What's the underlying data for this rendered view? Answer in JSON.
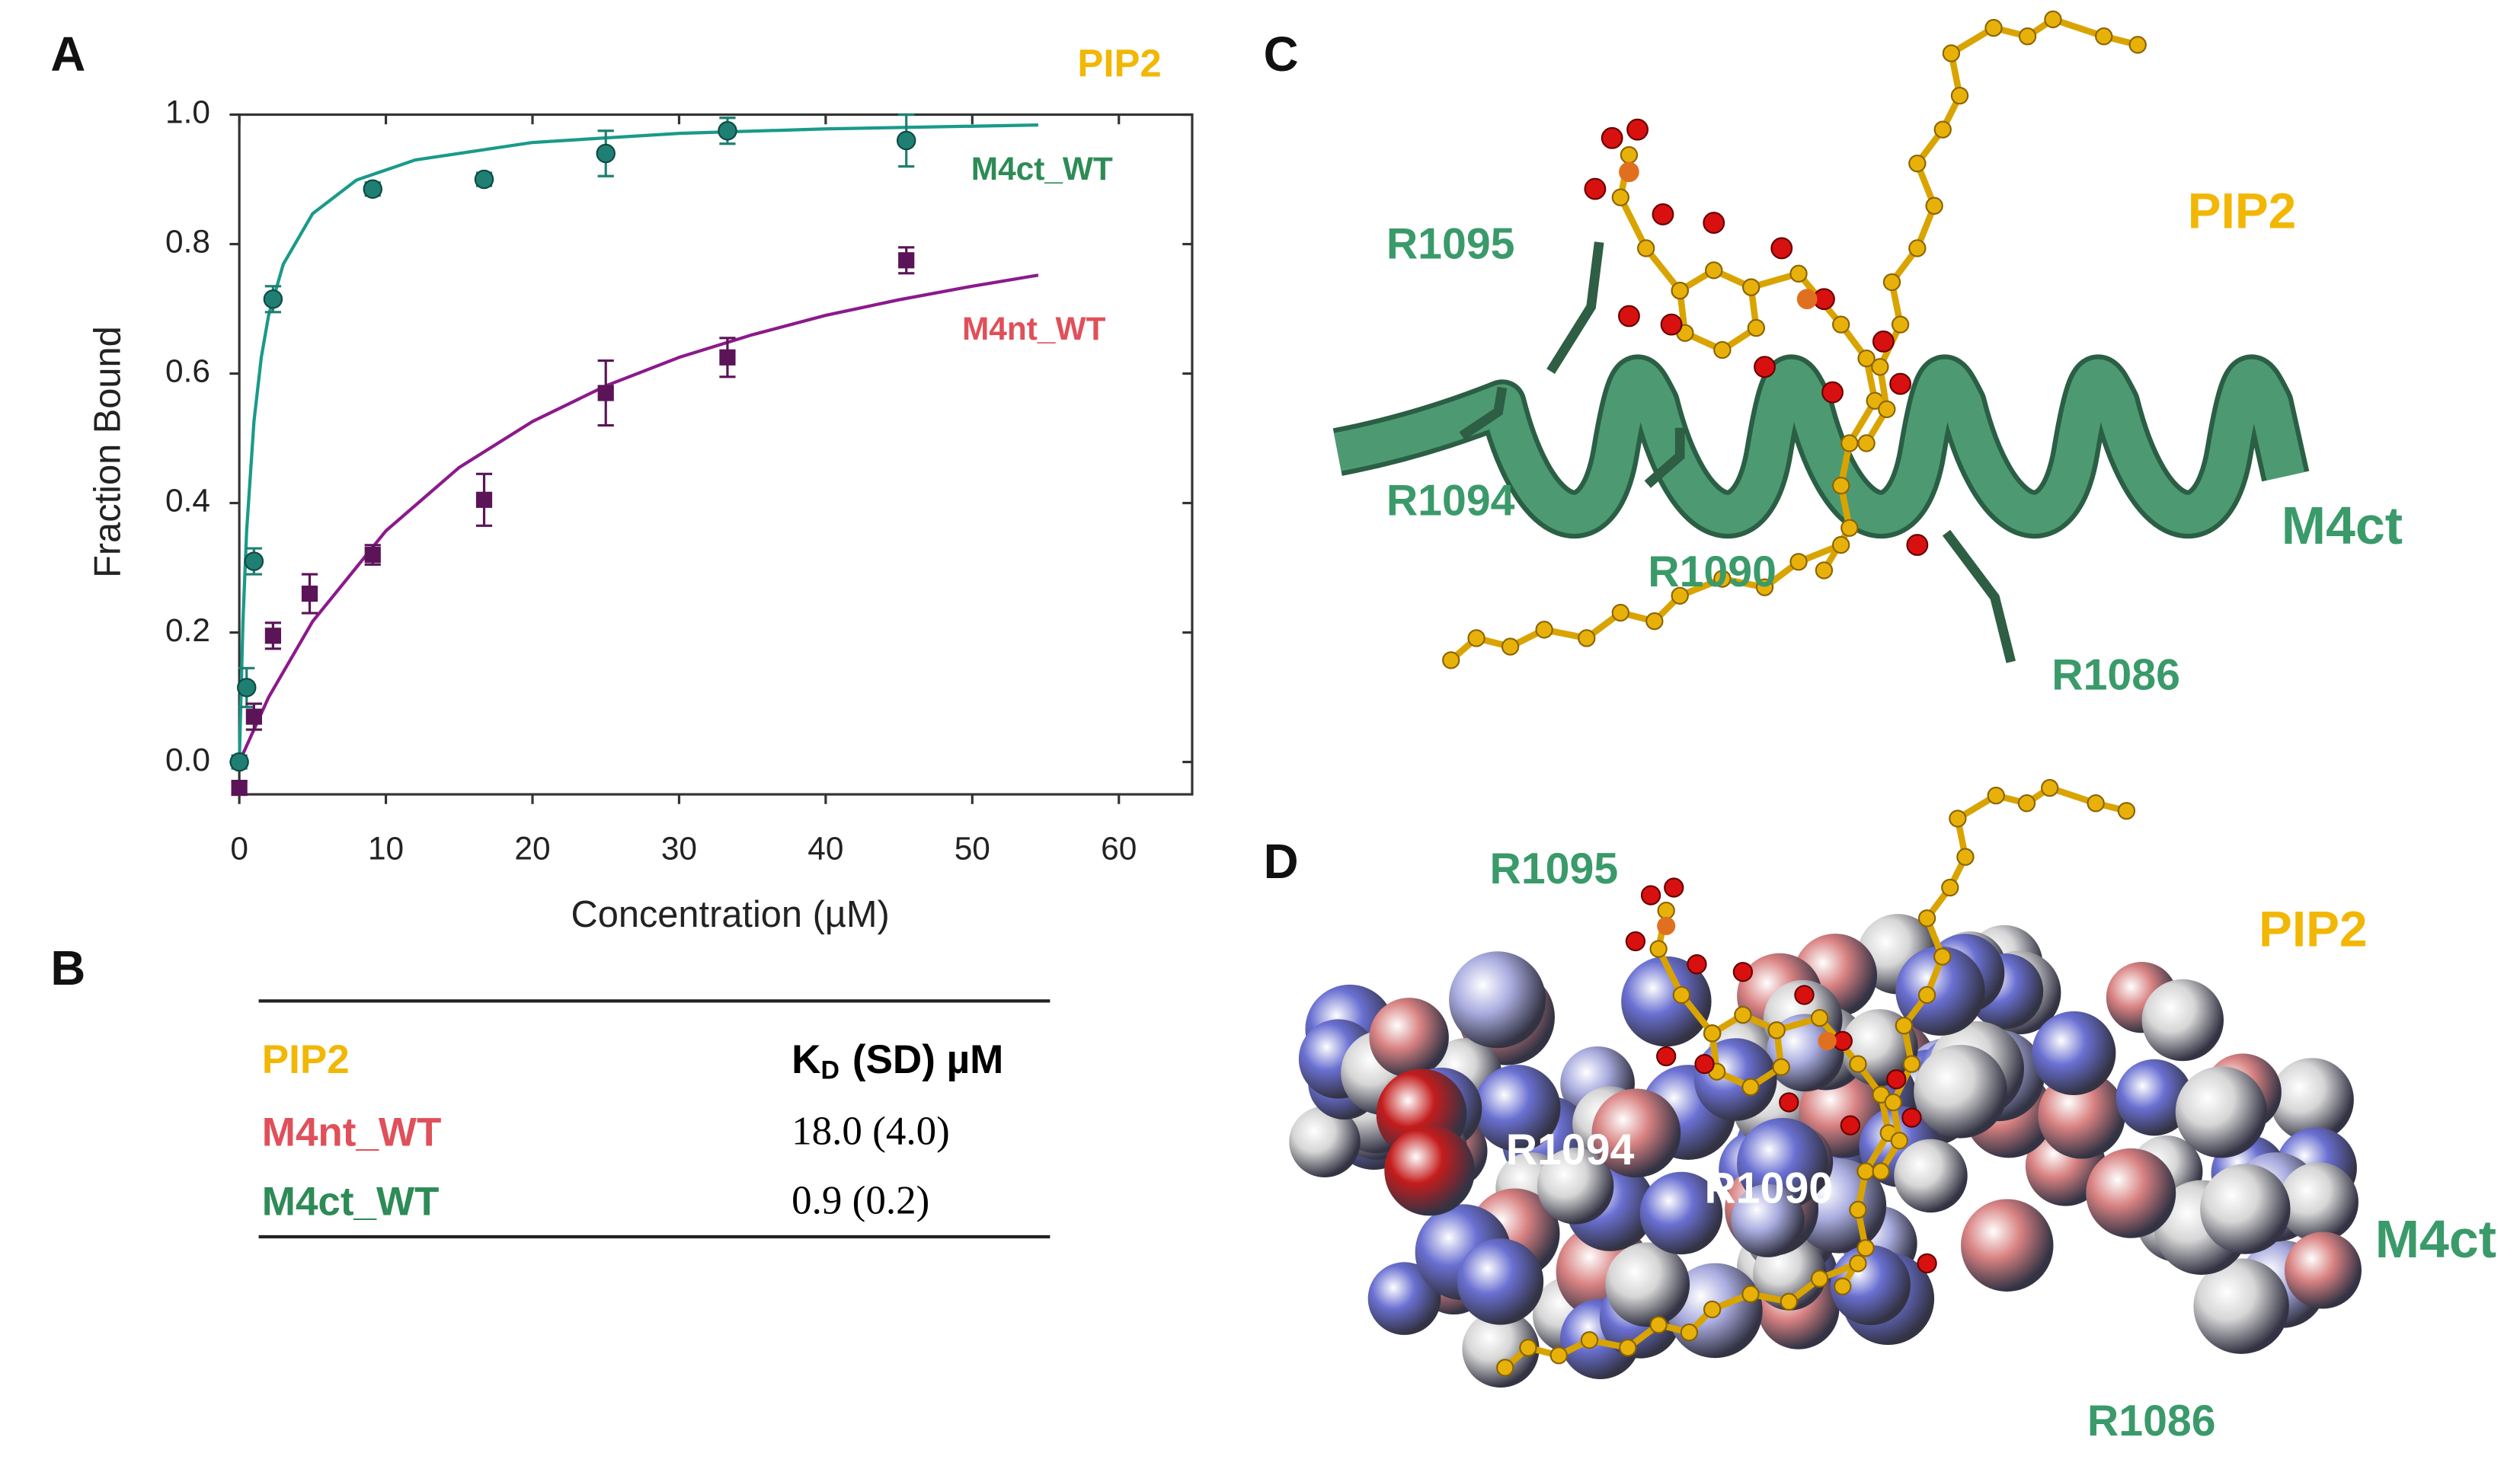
{
  "panel_labels": [
    "A",
    "B",
    "C",
    "D"
  ],
  "chart_data": {
    "type": "scatter",
    "title": "PIP2",
    "xlabel": "Concentration (µM)",
    "ylabel": "Fraction Bound",
    "xlim": [
      0,
      65
    ],
    "ylim": [
      -0.05,
      1.0
    ],
    "xticks": [
      0,
      10,
      20,
      30,
      40,
      50,
      60
    ],
    "yticks": [
      {
        "value": 0,
        "label": "0.0"
      },
      0.2,
      0.4,
      0.6,
      0.8,
      {
        "value": 1,
        "label": "1.0"
      }
    ],
    "series": [
      {
        "name": "M4ct_WT",
        "color": "#1f7f72",
        "label_color": "#2e8b57",
        "marker": "circle",
        "x": [
          0,
          0.5,
          1,
          2.3,
          9.1,
          16.7,
          25,
          33.3,
          45.5
        ],
        "values": [
          0,
          0.115,
          0.31,
          0.715,
          0.885,
          0.9,
          0.94,
          0.975,
          0.96
        ],
        "errors": [
          0.01,
          0.03,
          0.02,
          0.02,
          0.01,
          0.01,
          0.035,
          0.02,
          0.04
        ]
      },
      {
        "name": "M4nt_WT",
        "color": "#5a1457",
        "label_color": "#e0505a",
        "marker": "square",
        "x": [
          0,
          1,
          2.3,
          4.8,
          9.1,
          16.7,
          25,
          33.3,
          45.5
        ],
        "values": [
          -0.04,
          0.07,
          0.195,
          0.26,
          0.32,
          0.405,
          0.57,
          0.625,
          0.775
        ],
        "errors": [
          0.01,
          0.02,
          0.02,
          0.03,
          0.015,
          0.04,
          0.05,
          0.03,
          0.02
        ]
      }
    ],
    "fits": [
      {
        "color": "#1a9a8a",
        "x": [
          0,
          0.25,
          0.5,
          1,
          1.5,
          2,
          3,
          5,
          8,
          12,
          20,
          30,
          40,
          54.5
        ],
        "values": [
          0,
          0.217,
          0.357,
          0.526,
          0.625,
          0.69,
          0.769,
          0.847,
          0.899,
          0.93,
          0.957,
          0.971,
          0.978,
          0.984
        ]
      },
      {
        "color": "#8b1a8b",
        "x": [
          0,
          2,
          5,
          10,
          15,
          20,
          25,
          30,
          35,
          40,
          45,
          50,
          54.5
        ],
        "values": [
          0,
          0.1,
          0.217,
          0.357,
          0.455,
          0.526,
          0.581,
          0.625,
          0.66,
          0.69,
          0.714,
          0.735,
          0.752
        ]
      }
    ]
  },
  "table": {
    "header": {
      "ligand": "PIP2",
      "kd_main": "K",
      "kd_sub": "D",
      "kd_rest": "(SD) µM"
    },
    "rows": [
      [
        "M4nt_WT",
        "18.0 (4.0)"
      ],
      [
        "M4ct_WT",
        "0.9 (0.2)"
      ]
    ]
  },
  "structure_c": {
    "residues": [
      "R1095",
      "R1094",
      "R1090",
      "R1086"
    ],
    "ligand": "PIP2",
    "helix": "M4ct"
  },
  "structure_d": {
    "residues": [
      "R1095",
      "R1094",
      "R1090",
      "R1086"
    ],
    "ligand": "PIP2",
    "helix": "M4ct"
  }
}
